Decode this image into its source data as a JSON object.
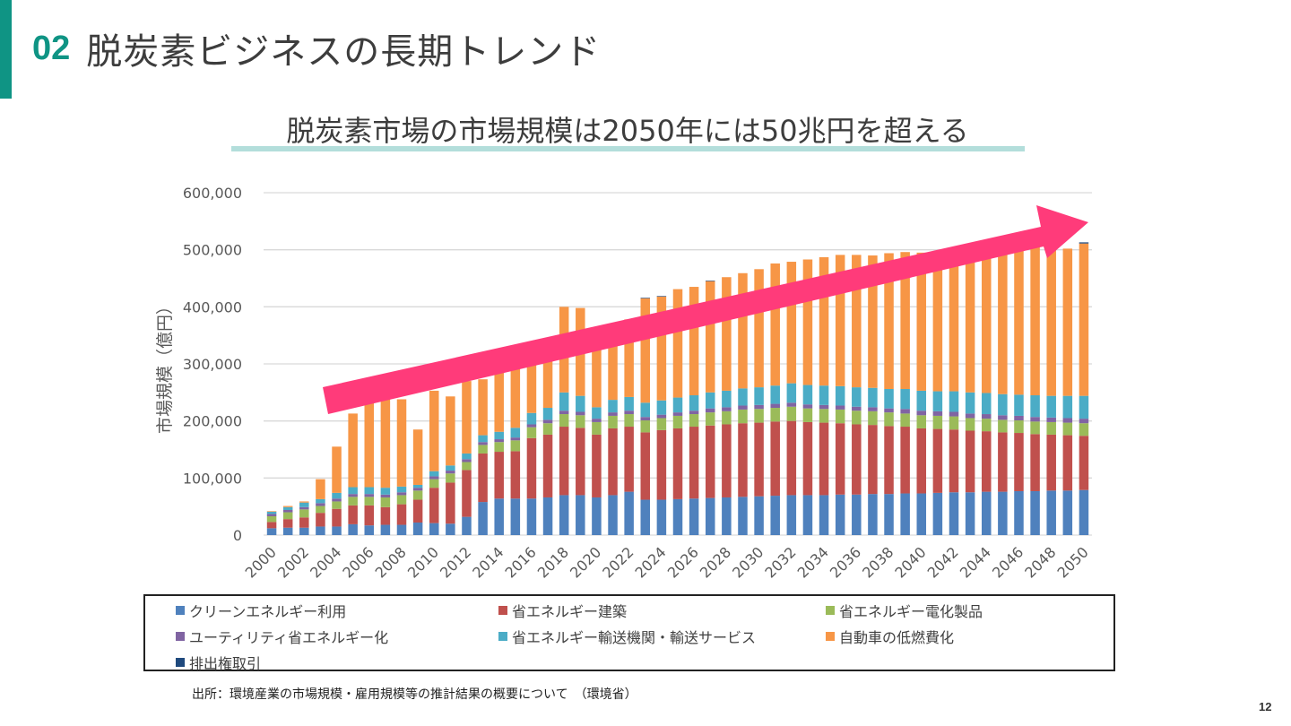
{
  "header": {
    "number": "02",
    "title": "脱炭素ビジネスの長期トレンド"
  },
  "subtitle": {
    "prefix": "脱炭素市場の市場規模は2050年には",
    "highlight": "50兆円",
    "suffix": "を超える"
  },
  "source": "出所：環境産業の市場規模・雇用規模等の推計結果の概要について　（環境省）",
  "page_number": "12",
  "colors": {
    "accent": "#0f9484",
    "arrow": "#ff3b7a"
  },
  "chart_data": {
    "type": "bar",
    "stacked": true,
    "title": "",
    "xlabel": "",
    "ylabel": "市場規模（億円）",
    "ylim": [
      0,
      600000
    ],
    "yticks": [
      0,
      100000,
      200000,
      300000,
      400000,
      500000,
      600000
    ],
    "ytick_labels": [
      "0",
      "100,000",
      "200,000",
      "300,000",
      "400,000",
      "500,000",
      "600,000"
    ],
    "grid": true,
    "legend_position": "bottom",
    "annotation": "upward trend arrow",
    "categories": [
      "2000",
      "2001",
      "2002",
      "2003",
      "2004",
      "2005",
      "2006",
      "2007",
      "2008",
      "2009",
      "2010",
      "2011",
      "2012",
      "2013",
      "2014",
      "2015",
      "2016",
      "2017",
      "2018",
      "2019",
      "2020",
      "2021",
      "2022",
      "2023",
      "2024",
      "2025",
      "2026",
      "2027",
      "2028",
      "2029",
      "2030",
      "2031",
      "2032",
      "2033",
      "2034",
      "2035",
      "2036",
      "2037",
      "2038",
      "2039",
      "2040",
      "2041",
      "2042",
      "2043",
      "2044",
      "2045",
      "2046",
      "2047",
      "2048",
      "2049",
      "2050"
    ],
    "xtick_labels": [
      "2000",
      "2002",
      "2004",
      "2006",
      "2008",
      "2010",
      "2012",
      "2014",
      "2016",
      "2018",
      "2020",
      "2022",
      "2024",
      "2026",
      "2028",
      "2030",
      "2032",
      "2034",
      "2036",
      "2038",
      "2040",
      "2042",
      "2044",
      "2046",
      "2048",
      "2050"
    ],
    "series": [
      {
        "name": "クリーンエネルギー利用",
        "color": "#4f81bd",
        "values": [
          12000,
          13000,
          13000,
          15000,
          15000,
          19000,
          17000,
          18000,
          18000,
          22000,
          21000,
          20000,
          32000,
          58000,
          64000,
          64000,
          64000,
          66000,
          70000,
          70000,
          66000,
          70000,
          76000,
          62000,
          62000,
          63000,
          64000,
          65000,
          66000,
          67000,
          68000,
          69000,
          70000,
          70000,
          70000,
          71000,
          71000,
          72000,
          72000,
          73000,
          73000,
          74000,
          75000,
          75000,
          76000,
          76000,
          77000,
          77000,
          78000,
          78000,
          79000
        ]
      },
      {
        "name": "省エネルギー建築",
        "color": "#c0504d",
        "values": [
          11000,
          15000,
          18000,
          24000,
          31000,
          33000,
          35000,
          31000,
          36000,
          40000,
          62000,
          72000,
          82000,
          85000,
          82000,
          83000,
          106000,
          110000,
          120000,
          118000,
          110000,
          117000,
          114000,
          118000,
          122000,
          124000,
          126000,
          127000,
          128000,
          129000,
          129000,
          130000,
          130000,
          128000,
          127000,
          125000,
          123000,
          121000,
          119000,
          117000,
          114000,
          112000,
          110000,
          108000,
          106000,
          104000,
          102000,
          100000,
          98000,
          97000,
          95000
        ]
      },
      {
        "name": "省エネルギー電化製品",
        "color": "#9bbb59",
        "values": [
          10000,
          12000,
          14000,
          12000,
          13000,
          15000,
          15000,
          17000,
          16000,
          16000,
          15000,
          16000,
          14000,
          15000,
          17000,
          19000,
          19000,
          20000,
          22000,
          22000,
          22000,
          22000,
          22000,
          21000,
          21000,
          22000,
          22000,
          23000,
          23000,
          24000,
          24000,
          24000,
          25000,
          24000,
          24000,
          24000,
          24000,
          24000,
          24000,
          23000,
          23000,
          23000,
          23000,
          22000,
          22000,
          22000,
          22000,
          22000,
          22000,
          22000,
          22000
        ]
      },
      {
        "name": "ユーティリティ省エネルギー化",
        "color": "#8064a2",
        "values": [
          4000,
          4000,
          4000,
          5000,
          5000,
          5000,
          5000,
          5000,
          5000,
          5000,
          5000,
          5000,
          5000,
          5000,
          5000,
          5000,
          5000,
          6000,
          6000,
          6000,
          6000,
          6000,
          6000,
          6000,
          6000,
          6000,
          6000,
          7000,
          7000,
          7000,
          7000,
          7000,
          7000,
          7000,
          7000,
          7000,
          7000,
          7000,
          7000,
          8000,
          8000,
          8000,
          8000,
          8000,
          8000,
          8000,
          8000,
          8000,
          8000,
          8000,
          8000
        ]
      },
      {
        "name": "省エネルギー輸送機関・輸送サービス",
        "color": "#4bacc6",
        "values": [
          4000,
          5000,
          8000,
          7000,
          10000,
          12000,
          12000,
          12000,
          10000,
          5000,
          9000,
          9000,
          10000,
          12000,
          13000,
          17000,
          20000,
          21000,
          32000,
          28000,
          20000,
          22000,
          24000,
          25000,
          25000,
          26000,
          27000,
          28000,
          29000,
          30000,
          31000,
          32000,
          34000,
          34000,
          34000,
          34000,
          34000,
          34000,
          34000,
          35000,
          35000,
          35000,
          36000,
          37000,
          37000,
          37000,
          37000,
          38000,
          38000,
          39000,
          40000
        ]
      },
      {
        "name": "自動車の低燃費化",
        "color": "#f79646",
        "values": [
          1000,
          2000,
          2000,
          35000,
          81000,
          129000,
          148000,
          165000,
          153000,
          97000,
          141000,
          121000,
          127000,
          98000,
          108000,
          118000,
          85000,
          117000,
          150000,
          154000,
          115000,
          128000,
          136000,
          183000,
          182000,
          190000,
          190000,
          195000,
          199000,
          202000,
          207000,
          214000,
          213000,
          220000,
          225000,
          230000,
          232000,
          232000,
          238000,
          240000,
          242000,
          245000,
          248000,
          253000,
          258000,
          263000,
          265000,
          268000,
          262000,
          258000,
          267000
        ]
      },
      {
        "name": "排出権取引",
        "color": "#1f497d",
        "values": [
          0,
          0,
          0,
          0,
          0,
          0,
          0,
          0,
          0,
          0,
          0,
          0,
          0,
          0,
          0,
          0,
          0,
          0,
          0,
          0,
          0,
          0,
          0,
          1000,
          1000,
          0,
          0,
          1000,
          0,
          0,
          0,
          0,
          0,
          0,
          0,
          0,
          0,
          0,
          0,
          0,
          0,
          0,
          0,
          0,
          0,
          0,
          0,
          0,
          0,
          0,
          2000
        ]
      }
    ]
  }
}
